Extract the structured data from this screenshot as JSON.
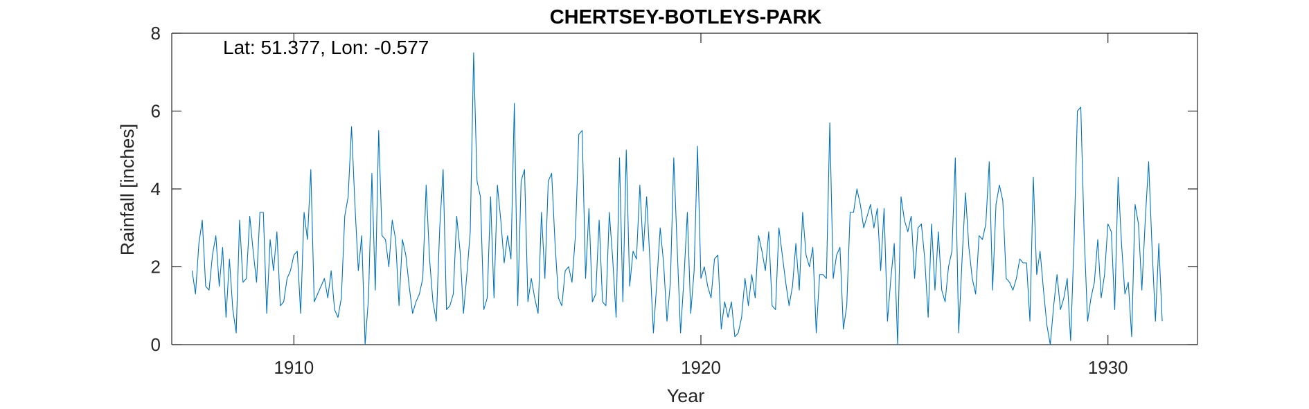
{
  "chart_data": {
    "type": "line",
    "title": "CHERTSEY-BOTLEYS-PARK",
    "xlabel": "Year",
    "ylabel": "Rainfall [inches]",
    "annotation": "Lat: 51.377, Lon: -0.577",
    "xlim": [
      1907.0,
      1932.2
    ],
    "ylim": [
      0,
      8
    ],
    "xticks": [
      1910,
      1920,
      1930
    ],
    "xtick_labels": [
      "1910",
      "1920",
      "1930"
    ],
    "yticks": [
      0,
      2,
      4,
      6,
      8
    ],
    "ytick_labels": [
      "0",
      "2",
      "4",
      "6",
      "8"
    ],
    "grid": false,
    "line_color": "#0072BD",
    "axis_color": "#262626",
    "series": [
      {
        "x_start": 1907.5,
        "x_step": 0.083333,
        "values": [
          1.9,
          1.3,
          2.6,
          3.2,
          1.5,
          1.4,
          2.3,
          2.8,
          1.5,
          2.5,
          0.7,
          2.2,
          0.9,
          0.3,
          3.2,
          1.6,
          1.7,
          3.3,
          2.4,
          1.6,
          3.4,
          3.4,
          0.8,
          2.7,
          1.9,
          2.9,
          1.0,
          1.1,
          1.7,
          1.9,
          2.3,
          2.4,
          0.8,
          3.4,
          2.7,
          4.5,
          1.1,
          1.3,
          1.5,
          1.7,
          1.2,
          1.9,
          0.9,
          0.7,
          1.2,
          3.3,
          3.8,
          5.6,
          3.6,
          1.9,
          2.8,
          0.0,
          1.2,
          4.4,
          1.4,
          5.5,
          2.8,
          2.7,
          2.0,
          3.2,
          2.7,
          1.0,
          2.7,
          2.3,
          1.5,
          0.8,
          1.1,
          1.3,
          1.7,
          4.1,
          2.2,
          1.1,
          0.6,
          3.0,
          4.5,
          0.9,
          1.0,
          1.3,
          3.3,
          2.4,
          0.8,
          1.8,
          2.9,
          7.5,
          4.2,
          3.8,
          0.9,
          1.2,
          3.8,
          1.2,
          4.1,
          3.2,
          2.1,
          2.8,
          2.2,
          6.2,
          1.0,
          4.2,
          4.5,
          1.1,
          1.7,
          1.2,
          0.8,
          3.4,
          1.7,
          4.2,
          4.4,
          2.6,
          1.2,
          1.0,
          1.9,
          2.0,
          1.6,
          2.8,
          5.4,
          5.5,
          1.7,
          3.5,
          1.1,
          1.3,
          3.2,
          1.1,
          1.0,
          3.4,
          2.2,
          0.7,
          4.8,
          1.1,
          5.0,
          1.5,
          2.4,
          2.2,
          4.1,
          2.4,
          3.8,
          2.1,
          0.3,
          1.6,
          3.0,
          2.1,
          0.6,
          1.6,
          4.8,
          2.5,
          0.3,
          1.7,
          3.4,
          0.8,
          1.9,
          5.1,
          1.7,
          2.0,
          1.5,
          1.2,
          2.2,
          2.3,
          0.4,
          1.1,
          0.7,
          1.1,
          0.2,
          0.3,
          0.7,
          1.7,
          1.0,
          1.8,
          1.2,
          2.8,
          2.4,
          1.9,
          2.9,
          1.0,
          0.9,
          3.0,
          2.3,
          1.6,
          1.0,
          1.5,
          2.6,
          1.4,
          3.4,
          2.3,
          2.0,
          2.5,
          0.3,
          1.8,
          1.8,
          1.7,
          5.7,
          1.7,
          2.3,
          2.5,
          0.4,
          1.0,
          3.4,
          3.4,
          4.0,
          3.6,
          3.0,
          3.3,
          3.6,
          3.0,
          3.5,
          1.9,
          3.5,
          0.6,
          1.7,
          2.6,
          0.0,
          3.8,
          3.2,
          2.9,
          3.3,
          1.7,
          3.0,
          3.1,
          2.2,
          0.7,
          3.1,
          1.4,
          2.9,
          1.4,
          1.1,
          2.0,
          2.4,
          4.8,
          0.3,
          2.2,
          3.9,
          2.5,
          1.7,
          1.3,
          2.8,
          2.7,
          3.1,
          4.7,
          1.4,
          3.6,
          4.1,
          3.7,
          1.7,
          1.6,
          1.4,
          1.7,
          2.2,
          2.1,
          2.1,
          0.6,
          4.3,
          1.8,
          2.4,
          1.4,
          0.5,
          0.0,
          1.0,
          1.8,
          0.9,
          1.2,
          1.7,
          0.1,
          2.6,
          6.0,
          6.1,
          2.8,
          0.6,
          1.2,
          1.6,
          2.7,
          1.2,
          1.8,
          3.1,
          2.9,
          0.9,
          4.3,
          2.6,
          1.3,
          1.6,
          0.2,
          3.6,
          3.1,
          1.4,
          3.2,
          4.7,
          2.5,
          0.6,
          2.6,
          0.6
        ]
      }
    ]
  }
}
